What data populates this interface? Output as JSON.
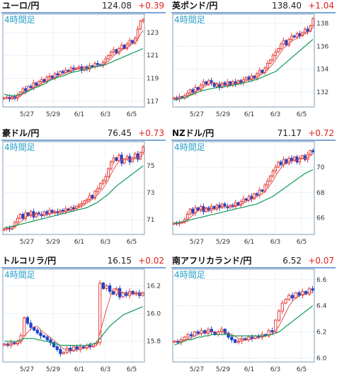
{
  "tf_label": "4時間足",
  "colors": {
    "up": "#e8403a",
    "down": "#1c44c9",
    "ma1": "#e05050",
    "ma2": "#119955",
    "border": "#7f9db9",
    "grid": "#c8d4e0",
    "tf": "#2aa0c8",
    "change": "#e02020"
  },
  "chart_data": [
    {
      "type": "candlestick",
      "title": "ユーロ/円",
      "price": "124.08",
      "change": "+0.39",
      "xticks": [
        "5/27",
        "5/29",
        "6/1",
        "6/3",
        "6/5"
      ],
      "yticks": [
        "123",
        "121",
        "119",
        "117"
      ],
      "ylim": [
        116.5,
        124.6
      ],
      "close": [
        117.3,
        117.35,
        117.2,
        117.4,
        117.25,
        117.5,
        117.8,
        118.1,
        117.9,
        118.3,
        118.2,
        118.6,
        118.4,
        118.7,
        118.9,
        118.7,
        119.1,
        119.2,
        119.0,
        119.4,
        119.3,
        119.6,
        119.5,
        119.7,
        119.6,
        119.9,
        119.8,
        119.9,
        120.0,
        119.7,
        120.0,
        119.8,
        120.1,
        120.0,
        120.3,
        120.2,
        120.1,
        120.4,
        120.7,
        121.0,
        121.3,
        121.5,
        121.2,
        121.6,
        121.9,
        121.6,
        122.0,
        122.3,
        122.1,
        122.5,
        123.3,
        124.0,
        124.1
      ],
      "ma2": [
        117.6,
        117.55,
        117.5,
        117.5,
        117.5,
        117.55,
        117.6,
        117.7,
        117.8,
        117.9,
        118.0,
        118.1,
        118.2,
        118.3,
        118.4,
        118.5,
        118.65,
        118.8,
        118.9,
        119.0,
        119.1,
        119.15,
        119.2,
        119.3,
        119.4,
        119.5,
        119.55,
        119.6,
        119.65,
        119.7,
        119.75,
        119.8,
        119.9,
        119.95,
        120.0,
        120.05,
        120.1,
        120.15,
        120.2,
        120.3,
        120.4,
        120.5,
        120.6,
        120.7,
        120.8,
        120.9,
        121.0,
        121.1,
        121.2,
        121.3,
        121.4,
        121.5,
        121.6
      ]
    },
    {
      "type": "candlestick",
      "title": "英ポンド/円",
      "price": "138.40",
      "change": "+1.04",
      "xticks": [
        "5/27",
        "5/29",
        "6/1",
        "6/3",
        "6/5"
      ],
      "yticks": [
        "138",
        "136",
        "134",
        "132"
      ],
      "ylim": [
        130.7,
        138.8
      ],
      "close": [
        131.5,
        131.4,
        131.6,
        131.5,
        131.7,
        131.9,
        132.2,
        132.0,
        132.4,
        132.2,
        132.6,
        132.9,
        132.7,
        133.0,
        132.8,
        132.5,
        132.7,
        132.4,
        132.8,
        132.6,
        132.9,
        132.6,
        132.9,
        132.7,
        133.0,
        132.8,
        133.1,
        133.3,
        133.1,
        133.4,
        133.2,
        133.6,
        133.9,
        133.7,
        134.1,
        134.5,
        134.8,
        135.2,
        135.5,
        135.8,
        136.2,
        136.5,
        136.1,
        136.6,
        136.9,
        136.8,
        137.1,
        136.9,
        137.2,
        137.5,
        137.3,
        137.8,
        138.4
      ],
      "ma2": [
        131.3,
        131.35,
        131.4,
        131.45,
        131.5,
        131.6,
        131.7,
        131.8,
        131.9,
        132.0,
        132.1,
        132.15,
        132.2,
        132.25,
        132.3,
        132.35,
        132.4,
        132.4,
        132.45,
        132.5,
        132.5,
        132.55,
        132.6,
        132.65,
        132.7,
        132.75,
        132.8,
        132.85,
        132.9,
        133.0,
        133.05,
        133.1,
        133.2,
        133.3,
        133.4,
        133.5,
        133.6,
        133.7,
        133.8,
        134.0,
        134.2,
        134.4,
        134.6,
        134.8,
        135.0,
        135.2,
        135.4,
        135.6,
        135.8,
        136.0,
        136.2,
        136.4,
        136.6
      ]
    },
    {
      "type": "candlestick",
      "title": "豪ドル/円",
      "price": "76.45",
      "change": "+0.73",
      "xticks": [
        "5/27",
        "5/29",
        "6/1",
        "6/3",
        "6/5"
      ],
      "yticks": [
        "75",
        "73",
        "71"
      ],
      "ylim": [
        69.9,
        76.8
      ],
      "close": [
        70.3,
        70.35,
        70.3,
        70.5,
        70.8,
        71.1,
        71.4,
        71.1,
        71.5,
        71.3,
        71.6,
        71.2,
        71.5,
        71.4,
        71.3,
        71.6,
        71.4,
        71.7,
        71.5,
        71.6,
        71.5,
        71.7,
        71.6,
        71.8,
        71.7,
        71.9,
        71.8,
        72.0,
        72.1,
        72.2,
        72.4,
        72.5,
        72.8,
        72.6,
        73.1,
        73.3,
        73.7,
        73.9,
        74.2,
        74.8,
        75.3,
        75.6,
        75.4,
        75.8,
        75.2,
        75.5,
        75.7,
        75.3,
        75.6,
        75.9,
        75.5,
        76.0,
        76.4
      ],
      "ma2": [
        70.4,
        70.42,
        70.45,
        70.5,
        70.55,
        70.6,
        70.65,
        70.7,
        70.75,
        70.8,
        70.85,
        70.9,
        70.95,
        71.0,
        71.05,
        71.1,
        71.15,
        71.2,
        71.25,
        71.3,
        71.35,
        71.4,
        71.45,
        71.5,
        71.55,
        71.6,
        71.65,
        71.7,
        71.75,
        71.8,
        71.85,
        71.9,
        72.0,
        72.1,
        72.2,
        72.3,
        72.45,
        72.6,
        72.75,
        72.9,
        73.1,
        73.3,
        73.5,
        73.65,
        73.8,
        73.95,
        74.1,
        74.25,
        74.4,
        74.55,
        74.7,
        74.85,
        75.0
      ]
    },
    {
      "type": "candlestick",
      "title": "NZドル/円",
      "price": "71.17",
      "change": "+0.72",
      "xticks": [
        "5/27",
        "5/29",
        "6/1",
        "6/3",
        "6/5"
      ],
      "yticks": [
        "70",
        "68",
        "66"
      ],
      "ylim": [
        64.7,
        72.0
      ],
      "close": [
        65.6,
        65.55,
        65.6,
        65.7,
        65.9,
        66.3,
        66.7,
        66.4,
        66.8,
        66.6,
        66.9,
        66.5,
        66.8,
        66.6,
        66.9,
        66.7,
        67.0,
        66.8,
        67.1,
        66.9,
        66.8,
        67.0,
        66.9,
        67.2,
        67.0,
        67.3,
        67.5,
        67.4,
        67.7,
        67.5,
        67.9,
        67.8,
        68.2,
        68.1,
        68.6,
        68.9,
        69.3,
        69.7,
        70.0,
        70.4,
        70.2,
        70.6,
        70.3,
        70.7,
        70.5,
        70.8,
        70.4,
        70.7,
        70.9,
        70.6,
        71.0,
        71.3,
        71.2
      ],
      "ma2": [
        65.6,
        65.62,
        65.65,
        65.7,
        65.75,
        65.8,
        65.85,
        65.9,
        65.95,
        66.0,
        66.05,
        66.1,
        66.15,
        66.2,
        66.25,
        66.3,
        66.35,
        66.4,
        66.45,
        66.5,
        66.55,
        66.6,
        66.65,
        66.7,
        66.75,
        66.8,
        66.85,
        66.9,
        66.95,
        67.0,
        67.05,
        67.1,
        67.2,
        67.3,
        67.4,
        67.5,
        67.6,
        67.7,
        67.85,
        68.0,
        68.15,
        68.3,
        68.45,
        68.6,
        68.75,
        68.9,
        69.05,
        69.2,
        69.35,
        69.5,
        69.6,
        69.7,
        69.8
      ]
    },
    {
      "type": "candlestick",
      "title": "トルコリラ/円",
      "price": "16.15",
      "change": "+0.02",
      "xticks": [
        "5/27",
        "5/29",
        "6/1",
        "6/3",
        "6/5"
      ],
      "yticks": [
        "16.2",
        "16.0",
        "15.8"
      ],
      "ylim": [
        15.65,
        16.32
      ],
      "close": [
        15.78,
        15.77,
        15.79,
        15.78,
        15.8,
        15.84,
        15.97,
        15.93,
        15.9,
        15.88,
        15.86,
        15.84,
        15.83,
        15.81,
        15.79,
        15.76,
        15.74,
        15.71,
        15.72,
        15.75,
        15.73,
        15.76,
        15.74,
        15.76,
        15.75,
        15.77,
        15.76,
        15.78,
        15.79,
        16.22,
        16.18,
        16.2,
        16.16,
        16.14,
        16.18,
        16.12,
        16.15,
        16.13,
        16.16,
        16.14,
        16.15,
        16.13,
        16.15
      ],
      "ma2": [
        15.8,
        15.8,
        15.8,
        15.8,
        15.8,
        15.81,
        15.82,
        15.82,
        15.82,
        15.82,
        15.81,
        15.81,
        15.8,
        15.8,
        15.79,
        15.78,
        15.78,
        15.77,
        15.77,
        15.77,
        15.77,
        15.77,
        15.77,
        15.77,
        15.77,
        15.77,
        15.78,
        15.78,
        15.79,
        15.82,
        15.85,
        15.88,
        15.91,
        15.93,
        15.95,
        15.97,
        15.99,
        16.0,
        16.01,
        16.02,
        16.03,
        16.04,
        16.05
      ]
    },
    {
      "type": "candlestick",
      "title": "南アフリカランド/円",
      "price": "6.52",
      "change": "+0.07",
      "xticks": [
        "5/27",
        "5/29",
        "6/1",
        "6/3",
        "6/5"
      ],
      "yticks": [
        "6.6",
        "6.4",
        "6.2",
        "6.0"
      ],
      "ylim": [
        5.97,
        6.68
      ],
      "close": [
        6.13,
        6.12,
        6.14,
        6.16,
        6.18,
        6.17,
        6.2,
        6.19,
        6.21,
        6.19,
        6.22,
        6.2,
        6.18,
        6.2,
        6.22,
        6.19,
        6.16,
        6.14,
        6.12,
        6.13,
        6.15,
        6.14,
        6.16,
        6.15,
        6.17,
        6.16,
        6.18,
        6.17,
        6.21,
        6.2,
        6.29,
        6.36,
        6.42,
        6.45,
        6.48,
        6.46,
        6.5,
        6.48,
        6.51,
        6.49,
        6.53,
        6.52
      ],
      "ma2": [
        6.1,
        6.11,
        6.12,
        6.13,
        6.14,
        6.14,
        6.15,
        6.16,
        6.16,
        6.17,
        6.17,
        6.18,
        6.18,
        6.18,
        6.18,
        6.18,
        6.18,
        6.17,
        6.17,
        6.17,
        6.17,
        6.17,
        6.17,
        6.17,
        6.17,
        6.17,
        6.17,
        6.17,
        6.18,
        6.18,
        6.19,
        6.2,
        6.22,
        6.24,
        6.26,
        6.28,
        6.3,
        6.32,
        6.34,
        6.36,
        6.38,
        6.4
      ]
    }
  ]
}
